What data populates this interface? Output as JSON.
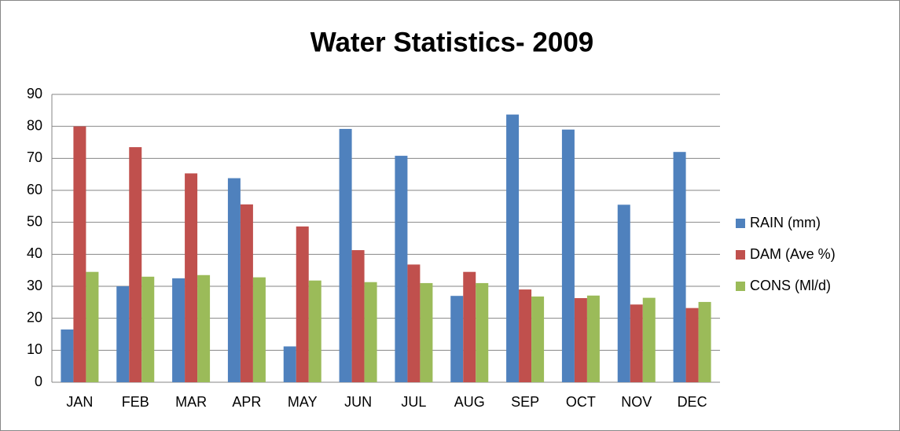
{
  "chart_data": {
    "type": "bar",
    "title": "Water Statistics- 2009",
    "categories": [
      "JAN",
      "FEB",
      "MAR",
      "APR",
      "MAY",
      "JUN",
      "JUL",
      "AUG",
      "SEP",
      "OCT",
      "NOV",
      "DEC"
    ],
    "series": [
      {
        "name": "RAIN (mm)",
        "color": "#4f81bd",
        "values": [
          16.5,
          30,
          32.5,
          63.8,
          11.2,
          79.2,
          70.8,
          27,
          83.7,
          79,
          55.5,
          72
        ]
      },
      {
        "name": "DAM (Ave %)",
        "color": "#c0504d",
        "values": [
          80,
          73.5,
          65.3,
          55.6,
          48.7,
          41.3,
          36.8,
          34.5,
          29,
          26.3,
          24.3,
          23.2
        ]
      },
      {
        "name": "CONS (Ml/d)",
        "color": "#9bbb59",
        "values": [
          34.5,
          33,
          33.5,
          32.8,
          31.8,
          31.3,
          31,
          31,
          26.8,
          27.1,
          26.4,
          25.1
        ]
      }
    ],
    "ylim": [
      0,
      90
    ],
    "yticks": [
      0,
      10,
      20,
      30,
      40,
      50,
      60,
      70,
      80,
      90
    ],
    "grid": true,
    "legend": "right"
  }
}
